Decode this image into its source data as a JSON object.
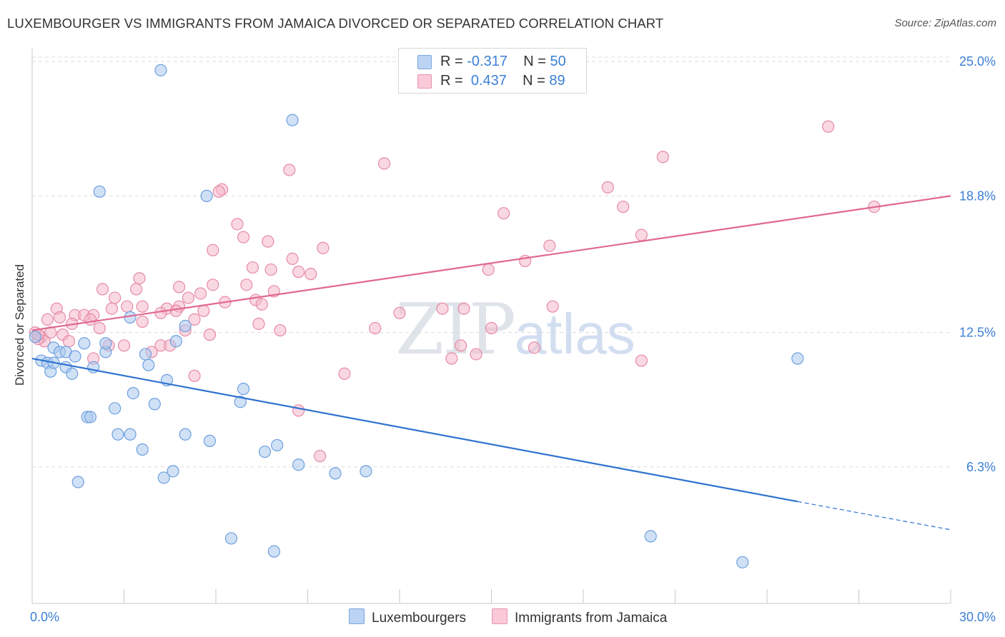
{
  "header": {
    "title": "LUXEMBOURGER VS IMMIGRANTS FROM JAMAICA DIVORCED OR SEPARATED CORRELATION CHART",
    "source": "Source: ZipAtlas.com"
  },
  "legend_top": {
    "rows": [
      {
        "r_label": "R =",
        "r_value": "-0.317",
        "n_label": "N =",
        "n_value": "50"
      },
      {
        "r_label": "R =",
        "r_value": "0.437",
        "n_label": "N =",
        "n_value": "89"
      }
    ]
  },
  "legend_bottom": {
    "items": [
      {
        "label": "Luxembourgers"
      },
      {
        "label": "Immigrants from Jamaica"
      }
    ]
  },
  "watermark": {
    "zip": "ZIP",
    "atlas": "atlas"
  },
  "colors": {
    "blue_fill": "#a9c8ef",
    "blue_stroke": "#6d9fdd",
    "blue_line": "#2f72d0",
    "pink_fill": "#f5b8cb",
    "pink_stroke": "#e58aa7",
    "pink_line": "#e0688f",
    "tick_label": "#3d7fd6",
    "grid": "#dcdcdc"
  },
  "chart_data": {
    "type": "scatter",
    "title": "LUXEMBOURGER VS IMMIGRANTS FROM JAMAICA DIVORCED OR SEPARATED CORRELATION CHART",
    "xlabel": "",
    "ylabel": "Divorced or Separated",
    "xlim": [
      0,
      30
    ],
    "ylim": [
      0,
      25.6
    ],
    "x_tick_labels": [
      "0.0%",
      "30.0%"
    ],
    "y_ticks": [
      6.3,
      12.5,
      18.8,
      25.0
    ],
    "y_tick_labels": [
      "6.3%",
      "12.5%",
      "18.8%",
      "25.0%"
    ],
    "grid": "horizontal dashed",
    "legend": "top-center",
    "series": [
      {
        "name": "Luxembourgers",
        "color": "#a9c8ef",
        "r": -0.317,
        "n": 50,
        "trend": {
          "x0": 0,
          "y0": 11.3,
          "x1": 25.0,
          "y1": 4.7,
          "dashed_to_x": 30,
          "dashed_to_y": 3.4
        },
        "points": [
          [
            4.2,
            24.6
          ],
          [
            8.5,
            22.3
          ],
          [
            2.2,
            19.0
          ],
          [
            5.7,
            18.8
          ],
          [
            0.1,
            12.3
          ],
          [
            0.3,
            11.2
          ],
          [
            0.5,
            11.1
          ],
          [
            0.6,
            10.7
          ],
          [
            0.7,
            11.1
          ],
          [
            0.7,
            11.8
          ],
          [
            0.9,
            11.6
          ],
          [
            1.1,
            11.6
          ],
          [
            1.1,
            10.9
          ],
          [
            1.3,
            10.6
          ],
          [
            1.4,
            11.4
          ],
          [
            1.7,
            12.0
          ],
          [
            2.0,
            10.9
          ],
          [
            2.4,
            11.6
          ],
          [
            2.4,
            12.0
          ],
          [
            3.2,
            13.2
          ],
          [
            3.3,
            9.7
          ],
          [
            3.8,
            11.0
          ],
          [
            3.7,
            11.5
          ],
          [
            4.0,
            9.2
          ],
          [
            4.4,
            10.3
          ],
          [
            4.7,
            12.1
          ],
          [
            5.0,
            12.8
          ],
          [
            6.8,
            9.3
          ],
          [
            6.9,
            9.9
          ],
          [
            1.8,
            8.6
          ],
          [
            1.9,
            8.6
          ],
          [
            2.7,
            9.0
          ],
          [
            2.8,
            7.8
          ],
          [
            3.2,
            7.8
          ],
          [
            3.6,
            7.1
          ],
          [
            5.0,
            7.8
          ],
          [
            5.8,
            7.5
          ],
          [
            7.6,
            7.0
          ],
          [
            8.0,
            7.3
          ],
          [
            8.7,
            6.4
          ],
          [
            9.9,
            6.0
          ],
          [
            10.9,
            6.1
          ],
          [
            1.5,
            5.6
          ],
          [
            4.3,
            5.8
          ],
          [
            4.6,
            6.1
          ],
          [
            6.5,
            3.0
          ],
          [
            7.9,
            2.4
          ],
          [
            20.2,
            3.1
          ],
          [
            23.2,
            1.9
          ],
          [
            25.0,
            11.3
          ]
        ]
      },
      {
        "name": "Immigrants from Jamaica",
        "color": "#f5b8cb",
        "r": 0.437,
        "n": 89,
        "trend": {
          "x0": 0,
          "y0": 12.6,
          "x1": 30,
          "y1": 18.8
        },
        "points": [
          [
            26.0,
            22.0
          ],
          [
            11.5,
            20.3
          ],
          [
            20.6,
            20.6
          ],
          [
            8.4,
            20.0
          ],
          [
            6.2,
            19.1
          ],
          [
            6.1,
            19.0
          ],
          [
            18.8,
            19.2
          ],
          [
            15.4,
            18.0
          ],
          [
            19.3,
            18.3
          ],
          [
            27.5,
            18.3
          ],
          [
            6.7,
            17.5
          ],
          [
            6.9,
            16.9
          ],
          [
            7.7,
            16.7
          ],
          [
            19.9,
            17.0
          ],
          [
            16.9,
            16.5
          ],
          [
            5.9,
            16.3
          ],
          [
            9.5,
            16.4
          ],
          [
            8.5,
            15.9
          ],
          [
            16.1,
            15.8
          ],
          [
            7.2,
            15.5
          ],
          [
            7.8,
            15.4
          ],
          [
            8.7,
            15.3
          ],
          [
            9.1,
            15.2
          ],
          [
            14.9,
            15.4
          ],
          [
            3.5,
            15.0
          ],
          [
            2.3,
            14.5
          ],
          [
            3.4,
            14.5
          ],
          [
            4.8,
            14.6
          ],
          [
            5.9,
            14.7
          ],
          [
            7.0,
            14.7
          ],
          [
            7.9,
            14.4
          ],
          [
            5.5,
            14.3
          ],
          [
            2.7,
            14.1
          ],
          [
            5.1,
            14.1
          ],
          [
            6.3,
            13.9
          ],
          [
            7.3,
            14.0
          ],
          [
            3.1,
            13.7
          ],
          [
            3.6,
            13.7
          ],
          [
            4.4,
            13.6
          ],
          [
            4.8,
            13.7
          ],
          [
            2.6,
            13.6
          ],
          [
            0.8,
            13.6
          ],
          [
            7.5,
            13.8
          ],
          [
            4.2,
            13.4
          ],
          [
            4.7,
            13.5
          ],
          [
            5.6,
            13.5
          ],
          [
            1.4,
            13.3
          ],
          [
            1.7,
            13.3
          ],
          [
            2.0,
            13.3
          ],
          [
            1.9,
            13.1
          ],
          [
            0.9,
            13.2
          ],
          [
            0.5,
            13.1
          ],
          [
            13.4,
            13.6
          ],
          [
            12.0,
            13.4
          ],
          [
            14.1,
            13.6
          ],
          [
            17.0,
            13.7
          ],
          [
            5.3,
            13.1
          ],
          [
            3.6,
            13.0
          ],
          [
            1.3,
            12.9
          ],
          [
            7.4,
            12.9
          ],
          [
            2.2,
            12.7
          ],
          [
            11.2,
            12.7
          ],
          [
            15.0,
            12.7
          ],
          [
            5.0,
            12.6
          ],
          [
            8.1,
            12.6
          ],
          [
            0.1,
            12.5
          ],
          [
            0.3,
            12.3
          ],
          [
            0.6,
            12.5
          ],
          [
            1.0,
            12.4
          ],
          [
            0.4,
            12.1
          ],
          [
            5.8,
            12.4
          ],
          [
            1.2,
            12.1
          ],
          [
            2.5,
            11.9
          ],
          [
            3.0,
            11.9
          ],
          [
            4.2,
            11.9
          ],
          [
            4.5,
            11.9
          ],
          [
            3.9,
            11.6
          ],
          [
            14.0,
            11.9
          ],
          [
            16.4,
            11.8
          ],
          [
            2.0,
            11.3
          ],
          [
            13.7,
            11.3
          ],
          [
            14.5,
            11.5
          ],
          [
            19.9,
            11.2
          ],
          [
            10.2,
            10.6
          ],
          [
            5.3,
            10.5
          ],
          [
            8.7,
            8.9
          ],
          [
            9.4,
            6.8
          ],
          [
            0.2,
            12.2
          ],
          [
            0.2,
            12.4
          ]
        ]
      }
    ]
  }
}
